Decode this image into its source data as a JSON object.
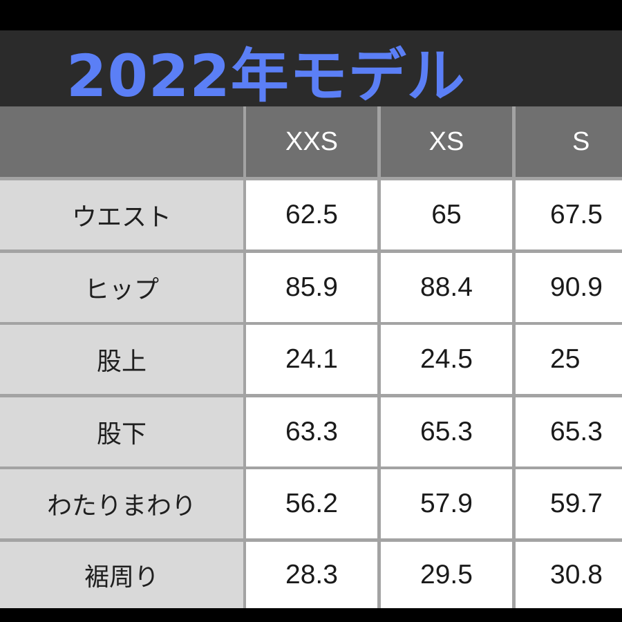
{
  "title": "2022年モデル",
  "colors": {
    "title_text": "#5b7ff6",
    "title_band": "#2b2b2b",
    "header_fill": "#707070",
    "label_fill": "#d9d9d9",
    "value_fill": "#ffffff",
    "grid_line": "#a3a3a3"
  },
  "table": {
    "columns": [
      "XXS",
      "XS",
      "S"
    ],
    "rows": [
      {
        "label": "ウエスト",
        "values": [
          "62.5",
          "65",
          "67.5"
        ]
      },
      {
        "label": "ヒップ",
        "values": [
          "85.9",
          "88.4",
          "90.9"
        ]
      },
      {
        "label": "股上",
        "values": [
          "24.1",
          "24.5",
          "25"
        ]
      },
      {
        "label": "股下",
        "values": [
          "63.3",
          "65.3",
          "65.3"
        ]
      },
      {
        "label": "わたりまわり",
        "values": [
          "56.2",
          "57.9",
          "59.7"
        ]
      },
      {
        "label": "裾周り",
        "values": [
          "28.3",
          "29.5",
          "30.8"
        ]
      }
    ]
  }
}
